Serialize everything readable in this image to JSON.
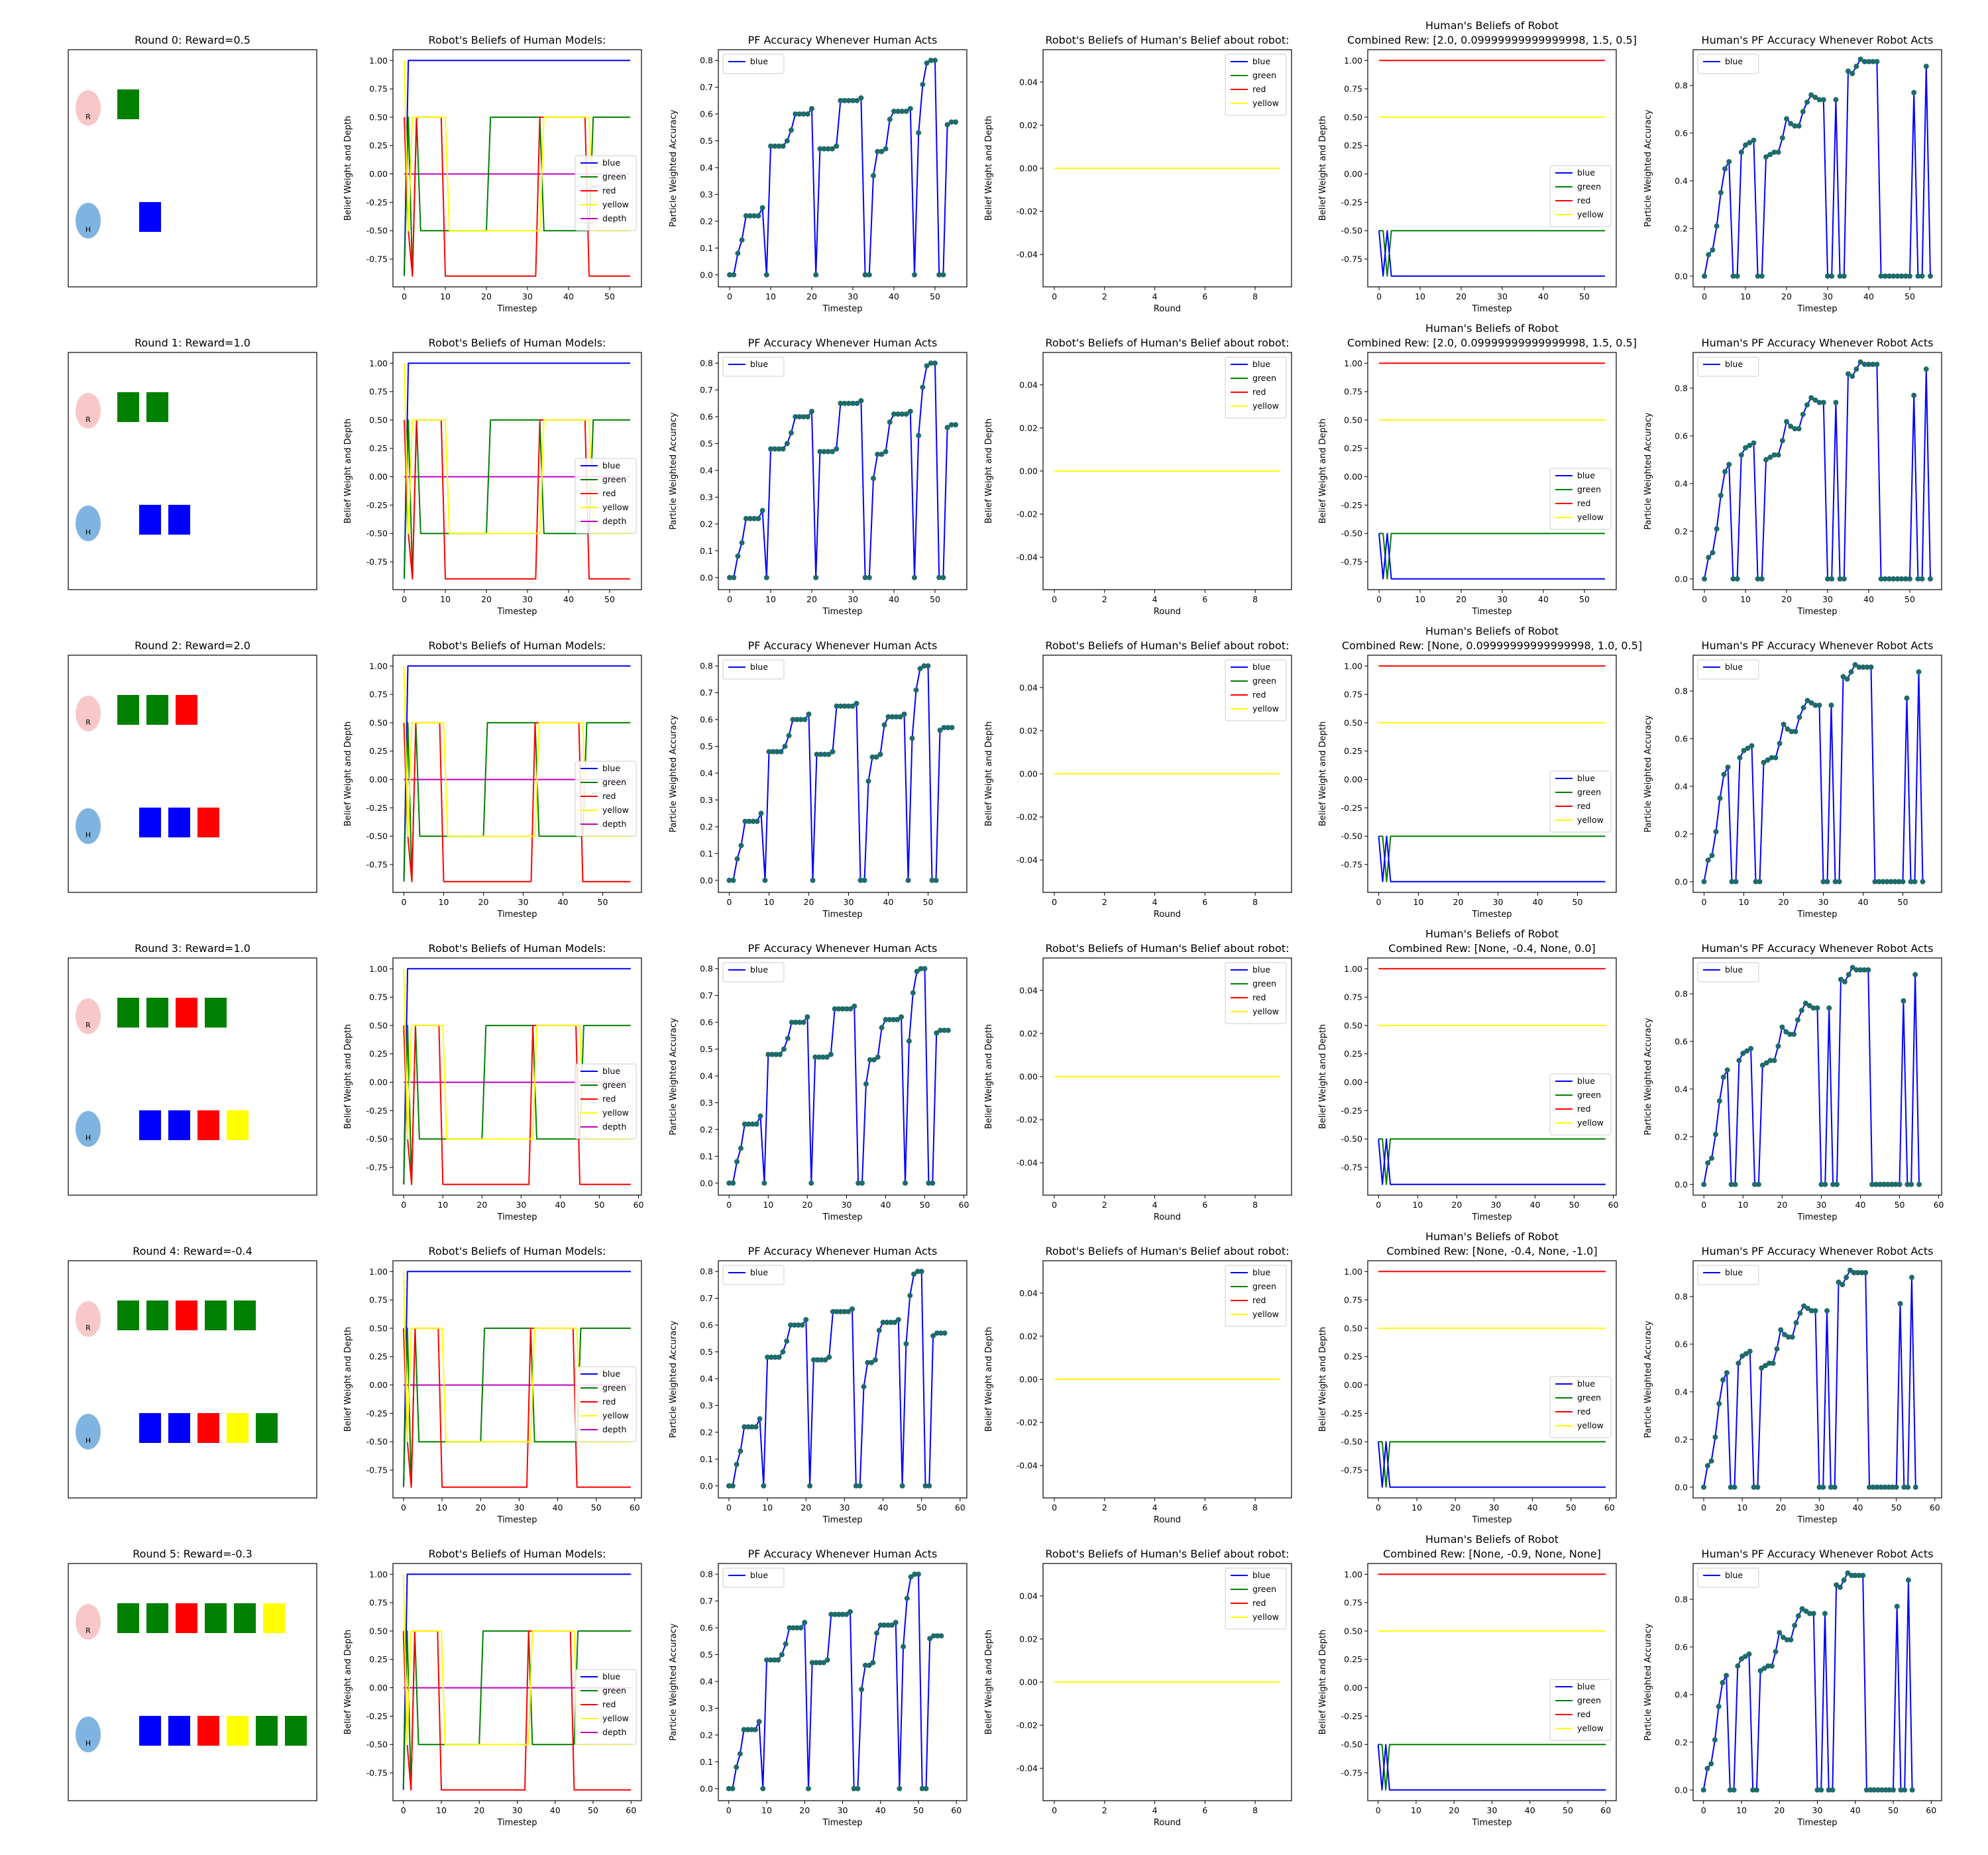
{
  "fig": {
    "colors": {
      "blue": "#0000ff",
      "green": "#008000",
      "red": "#ff0000",
      "yellow": "#ffff00",
      "depth": "#bf00bf",
      "marker": "#1f6b6b",
      "robot": "#f8c8c8",
      "human": "#80b4e0"
    },
    "labels": {
      "robot_agent": "R",
      "human_agent": "H",
      "x_timestep": "Timestep",
      "x_round": "Round",
      "y_belief": "Belief Weight and Depth",
      "y_accuracy": "Particle Weighted Accuracy",
      "title_rbh": "Robot's Beliefs of Human Models:",
      "title_pfh": "PF Accuracy Whenever Human Acts",
      "title_rbhb": "Robot's Beliefs of Human's Belief about robot:",
      "title_hbr": "Human's Beliefs of Robot",
      "title_pfr": "Human's PF Accuracy Whenever Robot Acts"
    },
    "legends": {
      "five": [
        "blue",
        "green",
        "red",
        "yellow",
        "depth"
      ],
      "four": [
        "blue",
        "green",
        "red",
        "yellow"
      ],
      "one": [
        "blue"
      ]
    },
    "ticks": {
      "belief_y": [
        "1.00",
        "0.75",
        "0.50",
        "0.25",
        "0.00",
        "-0.25",
        "-0.50",
        "-0.75"
      ],
      "acc_y_a": [
        "0.0",
        "0.1",
        "0.2",
        "0.3",
        "0.4",
        "0.5",
        "0.6",
        "0.7",
        "0.8"
      ],
      "acc_y_b": [
        "0.0",
        "0.2",
        "0.4",
        "0.6",
        "0.8"
      ],
      "flat_y": [
        "0.04",
        "0.02",
        "0.00",
        "-0.02",
        "-0.04"
      ],
      "x_50": [
        "0",
        "10",
        "20",
        "30",
        "40",
        "50"
      ],
      "x_60": [
        "0",
        "10",
        "20",
        "30",
        "40",
        "50",
        "60"
      ],
      "x_round": [
        "0",
        "2",
        "4",
        "6",
        "8"
      ]
    }
  },
  "rounds": [
    {
      "title": "Round 0: Reward=0.5",
      "hbr_title": "Combined Rew: [2.0, 0.09999999999999998, 1.5, 0.5]",
      "xmax": 55,
      "robot_blocks": [
        "green"
      ],
      "human_blocks": [
        "blue"
      ]
    },
    {
      "title": "Round 1: Reward=1.0",
      "hbr_title": "Combined Rew: [2.0, 0.09999999999999998, 1.5, 0.5]",
      "xmax": 55,
      "robot_blocks": [
        "green",
        "green"
      ],
      "human_blocks": [
        "blue",
        "blue"
      ]
    },
    {
      "title": "Round 2: Reward=2.0",
      "hbr_title": "Combined Rew: [None, 0.09999999999999998, 1.0, 0.5]",
      "xmax": 57,
      "robot_blocks": [
        "green",
        "green",
        "red"
      ],
      "human_blocks": [
        "blue",
        "blue",
        "red"
      ]
    },
    {
      "title": "Round 3: Reward=1.0",
      "hbr_title": "Combined Rew: [None, -0.4, None, 0.0]",
      "xmax": 58,
      "robot_blocks": [
        "green",
        "green",
        "red",
        "green"
      ],
      "human_blocks": [
        "blue",
        "blue",
        "red",
        "yellow"
      ]
    },
    {
      "title": "Round 4: Reward=-0.4",
      "hbr_title": "Combined Rew: [None, -0.4, None, -1.0]",
      "xmax": 59,
      "robot_blocks": [
        "green",
        "green",
        "red",
        "green",
        "green"
      ],
      "human_blocks": [
        "blue",
        "blue",
        "red",
        "yellow",
        "green"
      ]
    },
    {
      "title": "Round 5: Reward=-0.3",
      "hbr_title": "Combined Rew: [None, -0.9, None, None]",
      "xmax": 60,
      "robot_blocks": [
        "green",
        "green",
        "red",
        "green",
        "green",
        "yellow"
      ],
      "human_blocks": [
        "blue",
        "blue",
        "red",
        "yellow",
        "green",
        "green"
      ]
    }
  ],
  "chart_data": [
    {
      "type": "line",
      "title": "Robot's Beliefs of Human Models:",
      "xlabel": "Timestep",
      "ylabel": "Belief Weight and Depth",
      "ylim": [
        -0.9,
        1.0
      ],
      "legend": "center-right",
      "series": [
        {
          "name": "blue",
          "x": [
            0,
            1,
            60
          ],
          "y": [
            -0.9,
            1.0,
            1.0
          ]
        },
        {
          "name": "green",
          "x": [
            0,
            1,
            2,
            3,
            4,
            20,
            21,
            33,
            34,
            45,
            46,
            60
          ],
          "y": [
            -0.9,
            0.5,
            -0.9,
            0.5,
            -0.5,
            -0.5,
            0.5,
            0.5,
            -0.5,
            -0.5,
            0.5,
            0.5
          ]
        },
        {
          "name": "red",
          "x": [
            0,
            1,
            2,
            3,
            9,
            10,
            32,
            33,
            44,
            45,
            60
          ],
          "y": [
            0.5,
            -0.5,
            -0.9,
            0.5,
            0.5,
            -0.9,
            -0.9,
            0.5,
            0.5,
            -0.9,
            -0.9
          ]
        },
        {
          "name": "yellow",
          "x": [
            0,
            1,
            2,
            10,
            11,
            33,
            34,
            45,
            46,
            60
          ],
          "y": [
            1.0,
            -0.5,
            0.5,
            0.5,
            -0.5,
            -0.5,
            0.5,
            0.5,
            -0.5,
            -0.5
          ]
        },
        {
          "name": "depth",
          "x": [
            0,
            60
          ],
          "y": [
            0.0,
            0.0
          ]
        }
      ]
    },
    {
      "type": "line",
      "title": "PF Accuracy Whenever Human Acts",
      "xlabel": "Timestep",
      "ylabel": "Particle Weighted Accuracy",
      "ylim": [
        0,
        0.8
      ],
      "legend": "top-left",
      "series": [
        {
          "name": "blue",
          "x": [
            0,
            1,
            2,
            3,
            4,
            5,
            6,
            7,
            8,
            9,
            10,
            11,
            12,
            13,
            14,
            15,
            16,
            17,
            18,
            19,
            20,
            21,
            22,
            23,
            24,
            25,
            26,
            27,
            28,
            29,
            30,
            31,
            32,
            33,
            34,
            35,
            36,
            37,
            38,
            39,
            40,
            41,
            42,
            43,
            44,
            45,
            46,
            47,
            48,
            49,
            50,
            51,
            52,
            53,
            54,
            55,
            56
          ],
          "y": [
            0,
            0,
            0.08,
            0.13,
            0.22,
            0.22,
            0.22,
            0.22,
            0.25,
            0,
            0.48,
            0.48,
            0.48,
            0.48,
            0.5,
            0.54,
            0.6,
            0.6,
            0.6,
            0.6,
            0.62,
            0,
            0.47,
            0.47,
            0.47,
            0.47,
            0.48,
            0.65,
            0.65,
            0.65,
            0.65,
            0.65,
            0.66,
            0,
            0,
            0.37,
            0.46,
            0.46,
            0.47,
            0.58,
            0.61,
            0.61,
            0.61,
            0.61,
            0.62,
            0,
            0.53,
            0.71,
            0.79,
            0.8,
            0.8,
            0,
            0,
            0.56,
            0.57,
            0.57,
            0.57
          ]
        }
      ]
    },
    {
      "type": "line",
      "title": "Robot's Beliefs of Human's Belief about robot:",
      "xlabel": "Round",
      "ylabel": "Belief Weight and Depth",
      "ylim": [
        -0.055,
        0.055
      ],
      "legend": "top-right",
      "series": [
        {
          "name": "blue",
          "x": [
            0,
            9
          ],
          "y": [
            0,
            0
          ]
        },
        {
          "name": "green",
          "x": [
            0,
            9
          ],
          "y": [
            0,
            0
          ]
        },
        {
          "name": "red",
          "x": [
            0,
            9
          ],
          "y": [
            0,
            0
          ]
        },
        {
          "name": "yellow",
          "x": [
            0,
            9
          ],
          "y": [
            0,
            0
          ]
        }
      ]
    },
    {
      "type": "line",
      "title": "Human's Beliefs of Robot",
      "xlabel": "Timestep",
      "ylabel": "Belief Weight and Depth",
      "ylim": [
        -0.9,
        1.0
      ],
      "legend": "center-right",
      "series": [
        {
          "name": "blue",
          "x": [
            0,
            1,
            2,
            3,
            60
          ],
          "y": [
            -0.5,
            -0.9,
            -0.5,
            -0.9,
            -0.9
          ]
        },
        {
          "name": "green",
          "x": [
            0,
            1,
            2,
            3,
            60
          ],
          "y": [
            -0.5,
            -0.5,
            -0.9,
            -0.5,
            -0.5
          ]
        },
        {
          "name": "red",
          "x": [
            0,
            60
          ],
          "y": [
            1.0,
            1.0
          ]
        },
        {
          "name": "yellow",
          "x": [
            0,
            60
          ],
          "y": [
            0.5,
            0.5
          ]
        }
      ]
    },
    {
      "type": "line",
      "title": "Human's PF Accuracy Whenever Robot Acts",
      "xlabel": "Timestep",
      "ylabel": "Particle Weighted Accuracy",
      "ylim": [
        0,
        0.9
      ],
      "legend": "top-left",
      "series": [
        {
          "name": "blue",
          "x": [
            0,
            1,
            2,
            3,
            4,
            5,
            6,
            7,
            8,
            9,
            10,
            11,
            12,
            13,
            14,
            15,
            16,
            17,
            18,
            19,
            20,
            21,
            22,
            23,
            24,
            25,
            26,
            27,
            28,
            29,
            30,
            31,
            32,
            33,
            34,
            35,
            36,
            37,
            38,
            39,
            40,
            41,
            42,
            43,
            44,
            45,
            46,
            47,
            48,
            49,
            50,
            51,
            52,
            53,
            54,
            55
          ],
          "y": [
            0,
            0.09,
            0.11,
            0.21,
            0.35,
            0.45,
            0.48,
            0,
            0,
            0.52,
            0.55,
            0.56,
            0.57,
            0,
            0,
            0.5,
            0.51,
            0.52,
            0.52,
            0.58,
            0.66,
            0.64,
            0.63,
            0.63,
            0.69,
            0.73,
            0.76,
            0.75,
            0.74,
            0.74,
            0,
            0,
            0.74,
            0,
            0,
            0.86,
            0.85,
            0.88,
            0.91,
            0.9,
            0.9,
            0.9,
            0.9,
            0,
            0,
            0,
            0,
            0,
            0,
            0,
            0,
            0.77,
            0,
            0,
            0.88,
            0
          ]
        }
      ]
    }
  ]
}
